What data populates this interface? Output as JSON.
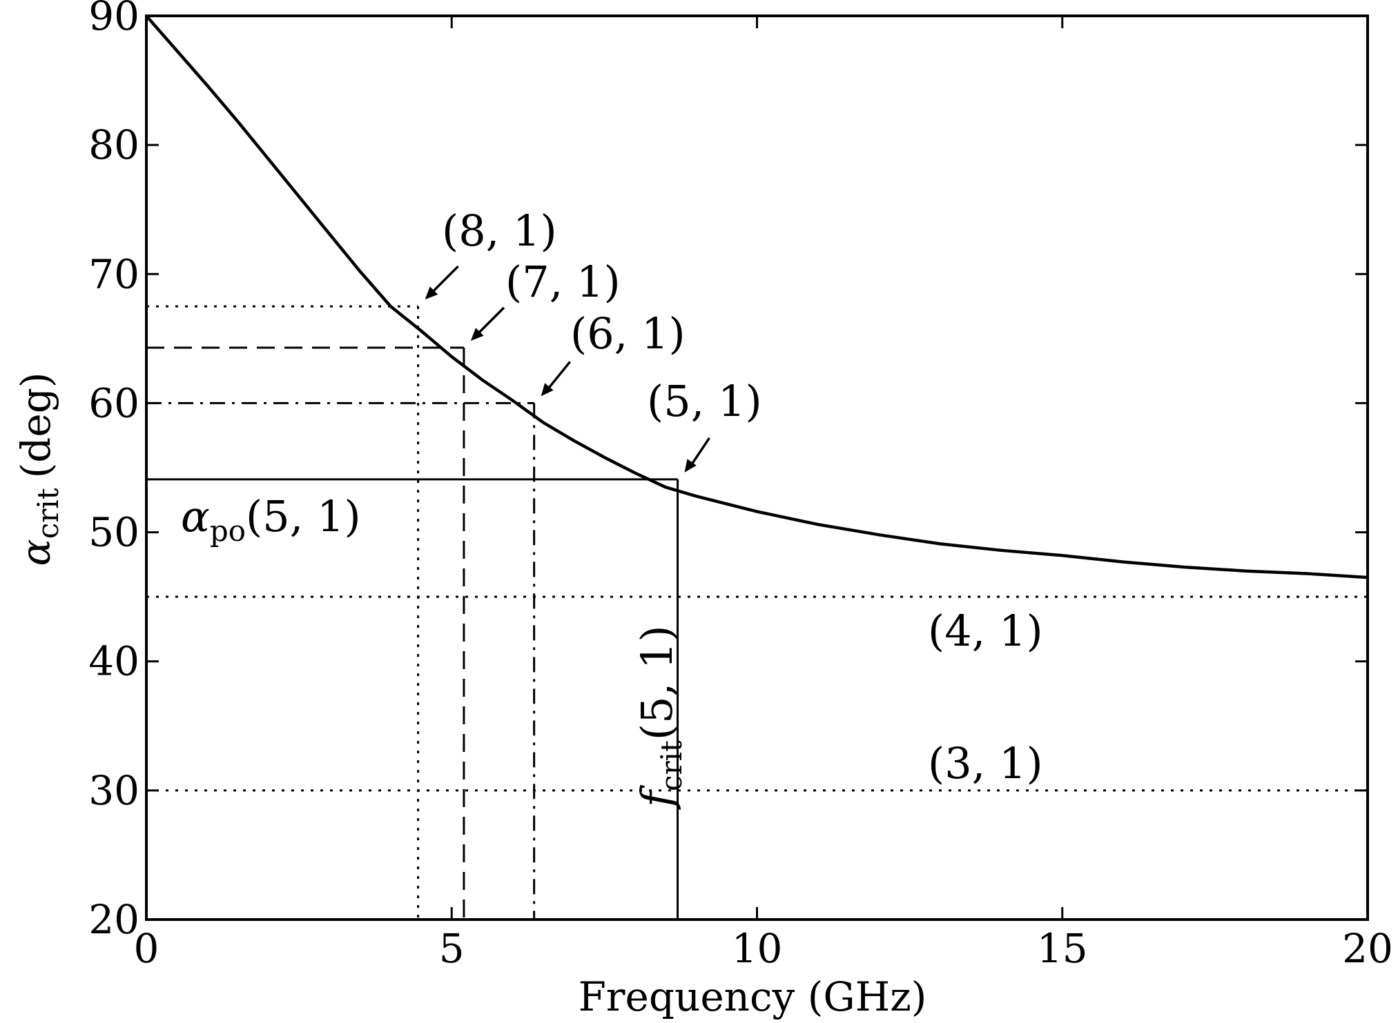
{
  "chart_data": {
    "type": "line",
    "xlabel": "Frequency (GHz)",
    "ylabel": {
      "symbol": "α",
      "subscript": "crit",
      "unit": "(deg)"
    },
    "xlim": [
      0,
      20
    ],
    "ylim": [
      20,
      90
    ],
    "xticks": [
      "0",
      "5",
      "10",
      "15",
      "20"
    ],
    "yticks": [
      "20",
      "30",
      "40",
      "50",
      "60",
      "70",
      "80",
      "90"
    ],
    "grid": false,
    "curve": {
      "x": [
        0,
        0.5,
        1,
        1.5,
        2,
        2.5,
        3,
        3.5,
        4,
        4.5,
        5,
        5.5,
        6,
        6.5,
        7,
        7.5,
        8,
        8.5,
        9,
        9.5,
        10,
        11,
        12,
        13,
        14,
        15,
        16,
        17,
        18,
        19,
        20
      ],
      "y": [
        90,
        87.3,
        84.6,
        81.8,
        78.9,
        76.0,
        73.1,
        70.2,
        67.5,
        65.6,
        63.6,
        61.8,
        60.2,
        58.5,
        57.1,
        55.8,
        54.6,
        53.5,
        52.8,
        52.2,
        51.6,
        50.6,
        49.8,
        49.1,
        48.6,
        48.2,
        47.7,
        47.3,
        47.0,
        46.8,
        46.5
      ]
    },
    "reference_lines": [
      {
        "mode": "(8, 1)",
        "alpha": 67.5,
        "f": 4.45,
        "style": "dotted"
      },
      {
        "mode": "(7, 1)",
        "alpha": 64.3,
        "f": 5.2,
        "style": "dashed"
      },
      {
        "mode": "(6, 1)",
        "alpha": 60.0,
        "f": 6.35,
        "style": "dashdot"
      },
      {
        "mode": "(5, 1)",
        "alpha": 54.1,
        "f": 8.7,
        "style": "solid"
      }
    ],
    "horizontal_lines": [
      {
        "mode": "(4, 1)",
        "alpha": 45,
        "style": "dotted"
      },
      {
        "mode": "(3, 1)",
        "alpha": 30,
        "style": "dotted"
      }
    ],
    "annotations": {
      "m8": "(8, 1)",
      "m7": "(7, 1)",
      "m6": "(6, 1)",
      "m5": "(5, 1)",
      "m4": "(4, 1)",
      "m3": "(3, 1)",
      "alpha_po": {
        "symbol": "α",
        "subscript": "po",
        "args": "(5, 1)"
      },
      "f_crit": {
        "symbol": "f",
        "subscript": "crit",
        "args": "(5, 1)"
      }
    }
  }
}
